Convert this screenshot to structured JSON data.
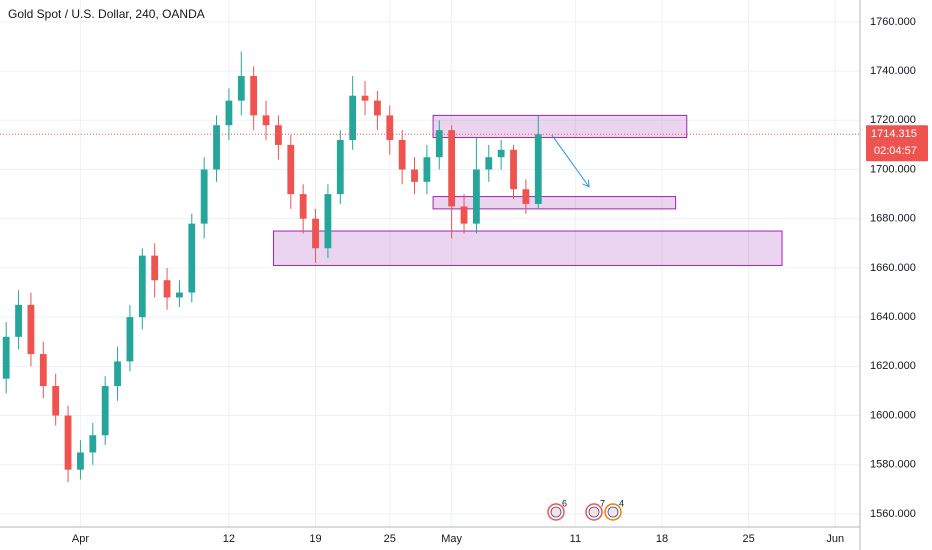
{
  "chart_data": {
    "type": "candlestick",
    "title": "Gold Spot / U.S. Dollar, 240, OANDA",
    "up_color": "#26a69a",
    "down_color": "#ef5350",
    "zone_color": "#9c27b0",
    "arrow_color": "#2196f3",
    "candles": {
      "x": [
        -6,
        -5,
        -4,
        -3,
        -2,
        -1,
        0,
        1,
        2,
        3,
        4,
        5,
        6,
        7,
        8,
        9,
        10,
        11,
        12,
        13,
        14,
        15,
        16,
        17,
        18,
        19,
        20,
        21,
        22,
        23,
        24,
        25,
        26,
        27,
        28,
        29,
        30,
        31,
        32,
        33,
        34,
        35,
        36,
        37
      ],
      "open": [
        1615,
        1632,
        1645,
        1625,
        1612,
        1600,
        1578,
        1585,
        1592,
        1612,
        1622,
        1640,
        1665,
        1655,
        1648,
        1650,
        1678,
        1700,
        1718,
        1728,
        1738,
        1722,
        1718,
        1710,
        1690,
        1680,
        1668,
        1690,
        1712,
        1730,
        1728,
        1722,
        1712,
        1700,
        1695,
        1705,
        1716,
        1685,
        1678,
        1700,
        1705,
        1708,
        1692,
        1686
      ],
      "high": [
        1638,
        1651,
        1650,
        1630,
        1617,
        1604,
        1590,
        1597,
        1616,
        1628,
        1645,
        1668,
        1670,
        1660,
        1655,
        1682,
        1705,
        1722,
        1733,
        1748,
        1742,
        1728,
        1722,
        1714,
        1694,
        1684,
        1694,
        1716,
        1738,
        1736,
        1732,
        1726,
        1716,
        1705,
        1710,
        1720,
        1718,
        1690,
        1713,
        1710,
        1712,
        1710,
        1696,
        1722
      ],
      "low": [
        1609,
        1627,
        1620,
        1607,
        1596,
        1573,
        1574,
        1580,
        1588,
        1606,
        1618,
        1635,
        1648,
        1643,
        1644,
        1646,
        1672,
        1695,
        1712,
        1722,
        1716,
        1712,
        1704,
        1684,
        1674,
        1662,
        1664,
        1686,
        1708,
        1722,
        1716,
        1706,
        1694,
        1690,
        1690,
        1700,
        1672,
        1674,
        1674,
        1695,
        1700,
        1688,
        1682,
        1684
      ],
      "close": [
        1632,
        1645,
        1625,
        1612,
        1600,
        1578,
        1585,
        1592,
        1612,
        1622,
        1640,
        1665,
        1655,
        1648,
        1650,
        1678,
        1700,
        1718,
        1728,
        1738,
        1722,
        1718,
        1710,
        1690,
        1680,
        1668,
        1690,
        1712,
        1730,
        1728,
        1722,
        1712,
        1700,
        1695,
        1705,
        1716,
        1685,
        1678,
        1700,
        1705,
        1708,
        1692,
        1686,
        1714.315
      ]
    },
    "zones": [
      {
        "x": [
          28.5,
          49
        ],
        "y": [
          1713,
          1722
        ]
      },
      {
        "x": [
          28.5,
          48.1
        ],
        "y": [
          1684,
          1689
        ]
      },
      {
        "x": [
          15.6,
          56.7
        ],
        "y": [
          1661,
          1675
        ]
      }
    ],
    "arrow": {
      "x": [
        38.1,
        41.1
      ],
      "y": [
        1714,
        1693
      ]
    },
    "countdown": "02:04:57",
    "events": [
      "6",
      "7",
      "4"
    ],
    "xlim": [
      -6.5,
      63
    ],
    "xticks": [
      {
        "value": 0,
        "label": "Apr"
      },
      12,
      19,
      25,
      {
        "value": 30,
        "label": "May"
      },
      {
        "value": 40,
        "label": "11"
      },
      {
        "value": 47,
        "label": "18"
      },
      {
        "value": 54,
        "label": "25"
      },
      {
        "value": 61,
        "label": "Jun"
      }
    ],
    "ylim": [
      1554.7,
      1768.9
    ],
    "yticks": [
      {
        "value": 1560,
        "label": "1560.000"
      },
      {
        "value": 1580,
        "label": "1580.000"
      },
      {
        "value": 1600,
        "label": "1600.000"
      },
      {
        "value": 1620,
        "label": "1620.000"
      },
      {
        "value": 1640,
        "label": "1640.000"
      },
      {
        "value": 1660,
        "label": "1660.000"
      },
      {
        "value": 1680,
        "label": "1680.000"
      },
      {
        "value": 1700,
        "label": "1700.000"
      },
      {
        "value": 1720,
        "label": "1720.000"
      },
      {
        "value": 1740,
        "label": "1740.000"
      },
      {
        "value": 1760,
        "label": "1760.000"
      }
    ],
    "grid": true
  }
}
